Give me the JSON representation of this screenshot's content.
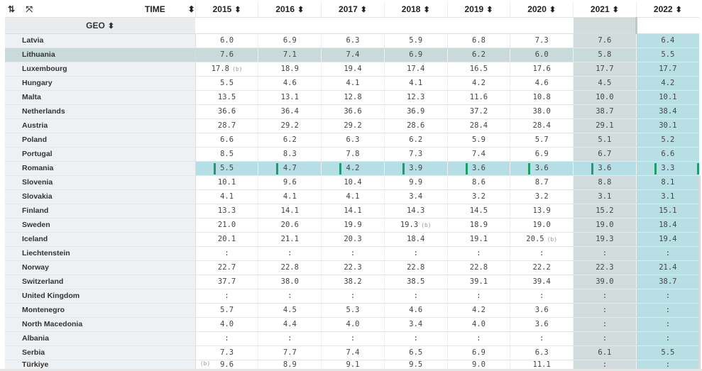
{
  "header": {
    "time_label": "TIME",
    "geo_label": "GEO",
    "sort_glyph": "⬍",
    "years": [
      "2015",
      "2016",
      "2017",
      "2018",
      "2019",
      "2020",
      "2021",
      "2022"
    ]
  },
  "icons": {
    "swap": "⇅",
    "expand": "⤧"
  },
  "rows": [
    {
      "country": "Latvia",
      "values": [
        "6.0",
        "6.9",
        "6.3",
        "5.9",
        "6.8",
        "7.3",
        "7.6",
        "6.4"
      ]
    },
    {
      "country": "Lithuania",
      "values": [
        "7.6",
        "7.1",
        "7.4",
        "6.9",
        "6.2",
        "6.0",
        "5.8",
        "5.5"
      ]
    },
    {
      "country": "Luxembourg",
      "values": [
        "17.8",
        "18.9",
        "19.4",
        "17.4",
        "16.5",
        "17.6",
        "17.7",
        "17.7"
      ]
    },
    {
      "country": "Hungary",
      "values": [
        "5.5",
        "4.6",
        "4.1",
        "4.1",
        "4.2",
        "4.6",
        "4.5",
        "4.2"
      ]
    },
    {
      "country": "Malta",
      "values": [
        "13.5",
        "13.1",
        "12.8",
        "12.3",
        "11.6",
        "10.8",
        "10.0",
        "10.1"
      ]
    },
    {
      "country": "Netherlands",
      "values": [
        "36.6",
        "36.4",
        "36.6",
        "36.9",
        "37.2",
        "38.0",
        "38.7",
        "38.4"
      ]
    },
    {
      "country": "Austria",
      "values": [
        "28.7",
        "29.2",
        "29.2",
        "28.6",
        "28.4",
        "28.4",
        "29.1",
        "30.1"
      ]
    },
    {
      "country": "Poland",
      "values": [
        "6.6",
        "6.2",
        "6.3",
        "6.2",
        "5.9",
        "5.7",
        "5.1",
        "5.2"
      ]
    },
    {
      "country": "Portugal",
      "values": [
        "8.5",
        "8.3",
        "7.8",
        "7.3",
        "7.4",
        "6.9",
        "6.7",
        "6.6"
      ]
    },
    {
      "country": "Romania",
      "values": [
        "5.5",
        "4.7",
        "4.2",
        "3.9",
        "3.6",
        "3.6",
        "3.6",
        "3.3"
      ]
    },
    {
      "country": "Slovenia",
      "values": [
        "10.1",
        "9.6",
        "10.4",
        "9.9",
        "8.6",
        "8.7",
        "8.8",
        "8.1"
      ]
    },
    {
      "country": "Slovakia",
      "values": [
        "4.1",
        "4.1",
        "4.1",
        "3.4",
        "3.2",
        "3.2",
        "3.1",
        "3.1"
      ]
    },
    {
      "country": "Finland",
      "values": [
        "13.3",
        "14.1",
        "14.1",
        "14.3",
        "14.5",
        "13.9",
        "15.2",
        "15.1"
      ]
    },
    {
      "country": "Sweden",
      "values": [
        "21.0",
        "20.6",
        "19.9",
        "19.3",
        "18.9",
        "19.0",
        "19.0",
        "18.4"
      ]
    },
    {
      "country": "Iceland",
      "values": [
        "20.1",
        "21.1",
        "20.3",
        "18.4",
        "19.1",
        "20.5",
        "19.3",
        "19.4"
      ]
    },
    {
      "country": "Liechtenstein",
      "values": [
        ":",
        ":",
        ":",
        ":",
        ":",
        ":",
        ":",
        ":"
      ]
    },
    {
      "country": "Norway",
      "values": [
        "22.7",
        "22.8",
        "22.3",
        "22.8",
        "22.8",
        "22.2",
        "22.3",
        "21.4"
      ]
    },
    {
      "country": "Switzerland",
      "values": [
        "37.7",
        "38.0",
        "38.2",
        "38.5",
        "39.1",
        "39.4",
        "39.0",
        "38.7"
      ]
    },
    {
      "country": "United Kingdom",
      "values": [
        ":",
        ":",
        ":",
        ":",
        ":",
        ":",
        ":",
        ":"
      ]
    },
    {
      "country": "Montenegro",
      "values": [
        "5.7",
        "4.5",
        "5.3",
        "4.6",
        "4.2",
        "3.6",
        ":",
        ":"
      ]
    },
    {
      "country": "North Macedonia",
      "values": [
        "4.0",
        "4.4",
        "4.0",
        "3.4",
        "4.0",
        "3.6",
        ":",
        ":"
      ]
    },
    {
      "country": "Albania",
      "values": [
        ":",
        ":",
        ":",
        ":",
        ":",
        ":",
        ":",
        ":"
      ]
    },
    {
      "country": "Serbia",
      "values": [
        "7.3",
        "7.7",
        "7.4",
        "6.5",
        "6.9",
        "6.3",
        "6.1",
        "5.5"
      ]
    },
    {
      "country": "Türkiye",
      "values": [
        "9.6",
        "8.9",
        "9.1",
        "9.5",
        "9.0",
        "11.1",
        ":",
        ":"
      ]
    }
  ],
  "flags": {
    "luxembourg_2015": "(b)",
    "sweden_2018": "(b)",
    "iceland_2020": "(b)",
    "turkiye_pre": "(b)"
  }
}
